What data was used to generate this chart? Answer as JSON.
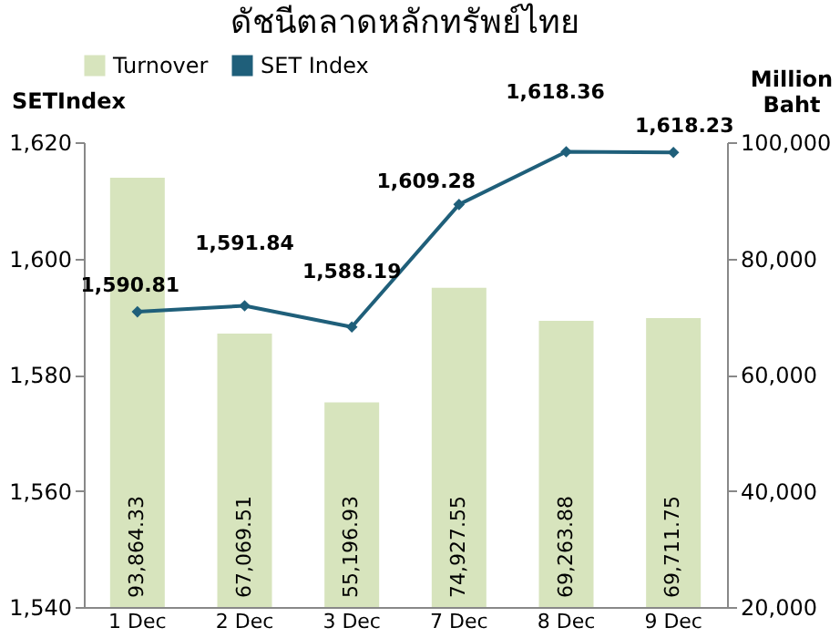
{
  "chart_data": {
    "type": "bar",
    "title": "ดัชนีตลาดหลักทรัพย์ไทย",
    "categories": [
      "1 Dec",
      "2 Dec",
      "3 Dec",
      "7 Dec",
      "8 Dec",
      "9 Dec"
    ],
    "series": [
      {
        "name": "Turnover",
        "axis": "y2",
        "color": "#d7e4bd",
        "values": [
          93864.33,
          67069.51,
          55196.93,
          74927.55,
          69263.88,
          69711.75
        ],
        "value_labels": [
          "93,864.33",
          "67,069.51",
          "55,196.93",
          "74,927.55",
          "69,263.88",
          "69,711.75"
        ]
      },
      {
        "name": "SET Index",
        "type": "line",
        "axis": "y",
        "color": "#1f5f7a",
        "values": [
          1590.81,
          1591.84,
          1588.19,
          1609.28,
          1618.36,
          1618.23
        ],
        "value_labels": [
          "1,590.81",
          "1,591.84",
          "1,588.19",
          "1,609.28",
          "1,618.36",
          "1,618.23"
        ]
      }
    ],
    "ylabel": "SETIndex",
    "y2label": "Million Baht",
    "ylim": [
      1540,
      1620
    ],
    "yticks": [
      {
        "value": 1540,
        "label": "1,540"
      },
      {
        "value": 1560,
        "label": "1,560"
      },
      {
        "value": 1580,
        "label": "1,580"
      },
      {
        "value": 1600,
        "label": "1,600"
      },
      {
        "value": 1620,
        "label": "1,620"
      }
    ],
    "y2lim": [
      20000,
      100000
    ],
    "y2ticks": [
      {
        "value": 20000,
        "label": "20,000"
      },
      {
        "value": 40000,
        "label": "40,000"
      },
      {
        "value": 60000,
        "label": "60,000"
      },
      {
        "value": 80000,
        "label": "80,000"
      },
      {
        "value": 100000,
        "label": "100,000"
      }
    ],
    "data_labels": true,
    "legend": "top",
    "marker": "diamond",
    "grid": false
  }
}
